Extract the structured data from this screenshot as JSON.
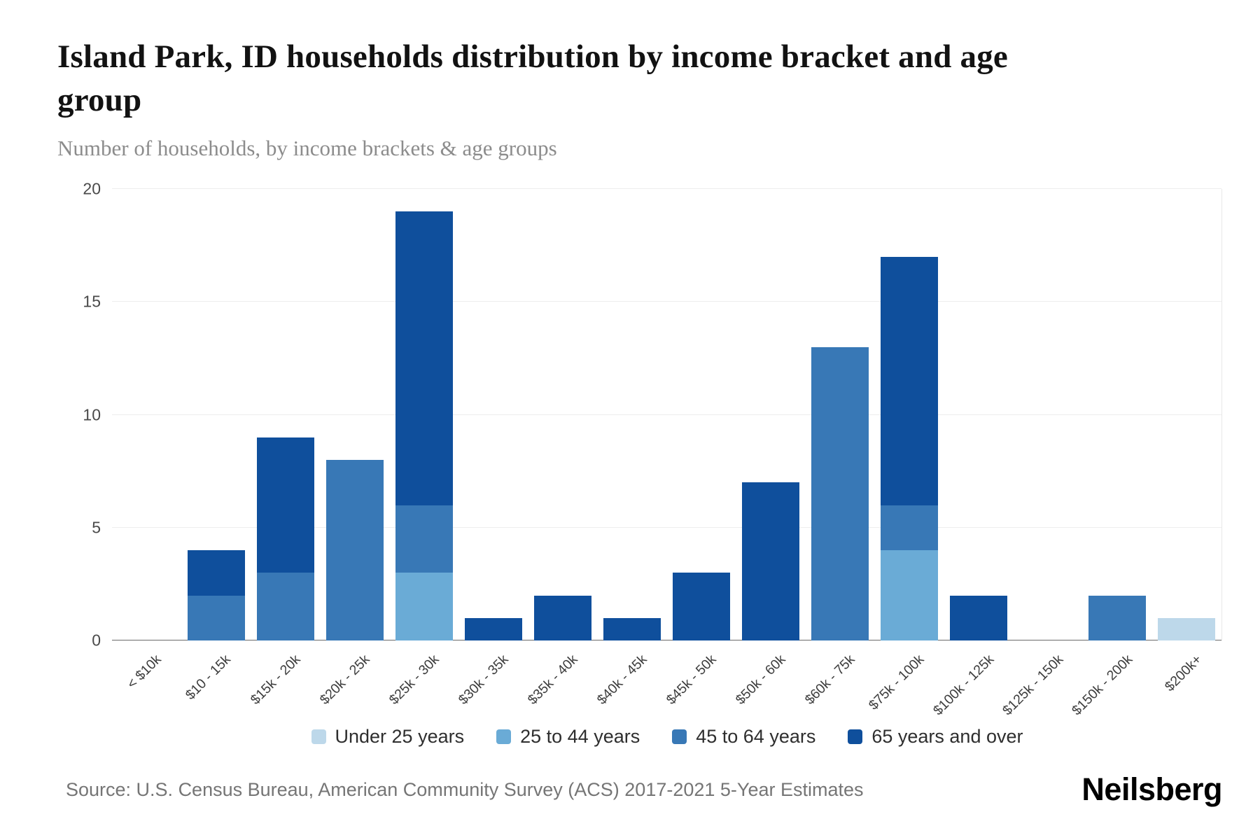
{
  "chart_data": {
    "type": "bar",
    "stacked": true,
    "title": "Island Park, ID households distribution by income bracket and age group",
    "subtitle": "Number of households, by income brackets & age groups",
    "categories": [
      "< $10k",
      "$10 - 15k",
      "$15k - 20k",
      "$20k - 25k",
      "$25k - 30k",
      "$30k - 35k",
      "$35k - 40k",
      "$40k - 45k",
      "$45k - 50k",
      "$50k - 60k",
      "$60k - 75k",
      "$75k - 100k",
      "$100k - 125k",
      "$125k - 150k",
      "$150k - 200k",
      "$200k+"
    ],
    "series": [
      {
        "name": "Under 25 years",
        "color": "#bdd8ea",
        "values": [
          0,
          0,
          0,
          0,
          0,
          0,
          0,
          0,
          0,
          0,
          0,
          0,
          0,
          0,
          0,
          1
        ]
      },
      {
        "name": "25 to 44 years",
        "color": "#6aabd6",
        "values": [
          0,
          0,
          0,
          0,
          3,
          0,
          0,
          0,
          0,
          0,
          0,
          4,
          0,
          0,
          0,
          0
        ]
      },
      {
        "name": "45 to 64 years",
        "color": "#3878b6",
        "values": [
          0,
          2,
          3,
          8,
          3,
          0,
          0,
          0,
          0,
          0,
          13,
          2,
          0,
          0,
          2,
          0
        ]
      },
      {
        "name": "65 years and over",
        "color": "#0f4f9c",
        "values": [
          0,
          2,
          6,
          0,
          13,
          1,
          2,
          1,
          3,
          7,
          0,
          11,
          2,
          0,
          0,
          0
        ]
      }
    ],
    "totals": [
      0,
      4,
      9,
      8,
      19,
      1,
      2,
      1,
      3,
      7,
      13,
      17,
      2,
      0,
      2,
      1
    ],
    "xlabel": "",
    "ylabel": "",
    "ylim": [
      0,
      20
    ],
    "yticks": [
      0,
      5,
      10,
      15,
      20
    ],
    "grid": true,
    "legend_position": "bottom"
  },
  "footer": {
    "source": "Source: U.S. Census Bureau, American Community Survey (ACS) 2017-2021 5-Year Estimates",
    "logo": "Neilsberg"
  }
}
